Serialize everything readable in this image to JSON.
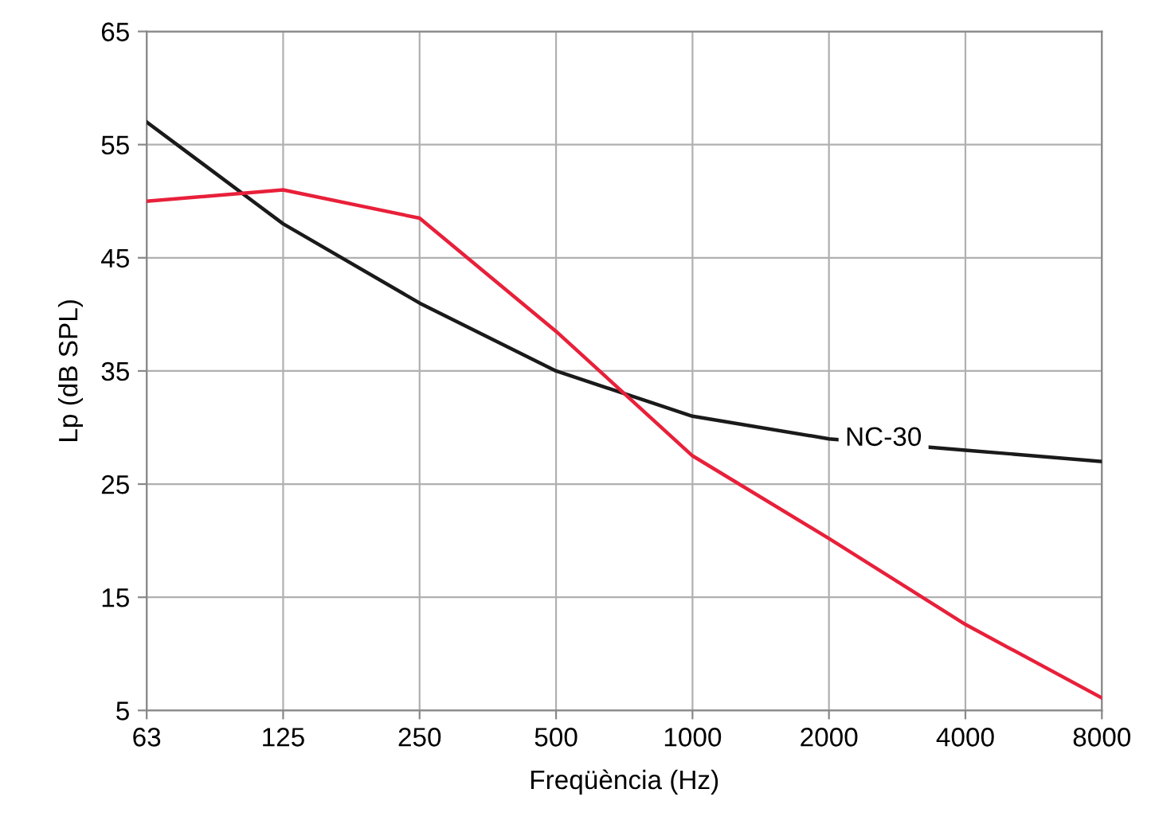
{
  "chart_data": {
    "type": "line",
    "xlabel": "Freqüència (Hz)",
    "ylabel": "Lp (dB SPL)",
    "categories": [
      "63",
      "125",
      "250",
      "500",
      "1000",
      "2000",
      "4000",
      "8000"
    ],
    "series": [
      {
        "name": "NC-30",
        "color": "#1a1a1a",
        "values": [
          57,
          48,
          41,
          35,
          31,
          29,
          28,
          27
        ]
      },
      {
        "color": "#e8203a",
        "values": [
          50,
          51,
          48.5,
          38.5,
          27.5,
          20.2,
          12.6,
          6.1
        ]
      }
    ],
    "ylim": [
      5,
      65
    ],
    "yticks": [
      5,
      15,
      25,
      35,
      45,
      55,
      65
    ],
    "grid": true,
    "legend": false,
    "marker": "none",
    "line_style": "solid"
  }
}
